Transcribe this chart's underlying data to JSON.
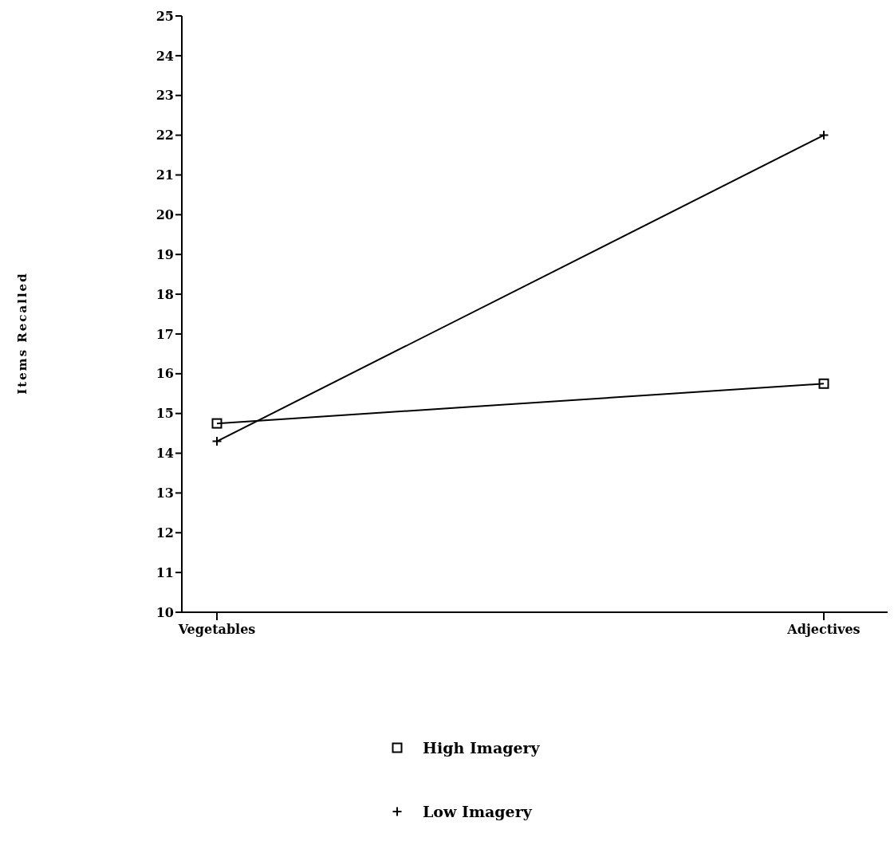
{
  "chart_data": {
    "type": "line",
    "ylabel": "Items Recalled",
    "categories": [
      "Vegetables",
      "Adjectives"
    ],
    "series": [
      {
        "name": "High Imagery",
        "color": "#000000",
        "marker": "square",
        "values": [
          14.75,
          15.75
        ]
      },
      {
        "name": "Low Imagery",
        "color": "#000000",
        "marker": "cross",
        "values": [
          14.3,
          22
        ]
      }
    ],
    "ylim": [
      10,
      25
    ],
    "yticks": [
      10,
      11,
      12,
      13,
      14,
      15,
      16,
      17,
      18,
      19,
      20,
      21,
      22,
      23,
      24,
      25
    ],
    "grid": false,
    "legend": "bottom"
  }
}
